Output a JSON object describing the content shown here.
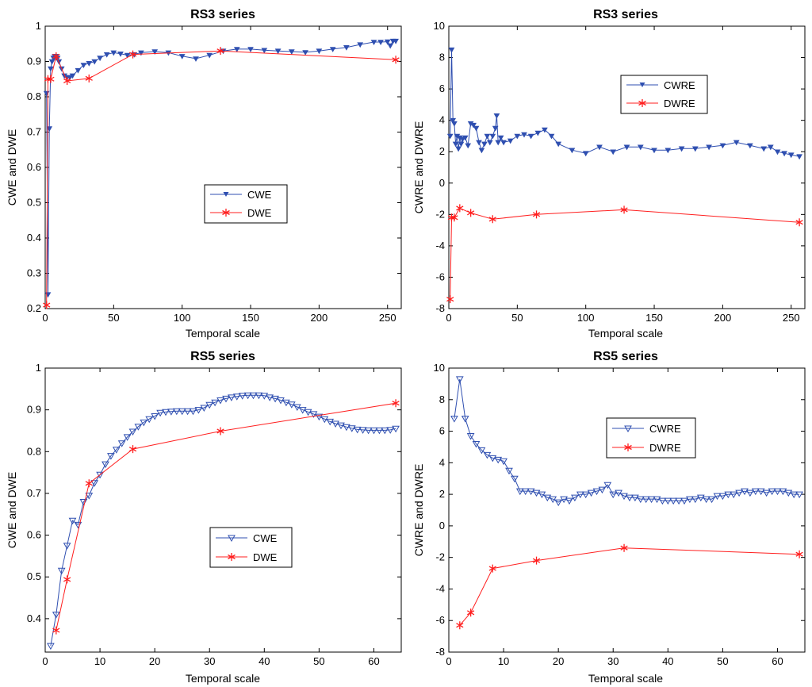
{
  "figure": {
    "colors": {
      "cwe": "#2f4fb0",
      "dwe": "#ff1f1f",
      "axes": "#000000",
      "background": "#ffffff"
    },
    "markers": {
      "cwe": "triangle-down-icon",
      "dwe": "asterisk-icon"
    }
  },
  "chart_data": [
    {
      "type": "line",
      "title": "RS3 series",
      "xlabel": "Temporal scale",
      "ylabel": "CWE and DWE",
      "xlim": [
        0,
        260
      ],
      "ylim": [
        0.2,
        1.0
      ],
      "xticks": [
        0,
        50,
        100,
        150,
        200,
        250
      ],
      "yticks": [
        0.2,
        0.3,
        0.4,
        0.5,
        0.6,
        0.7,
        0.8,
        0.9,
        1.0
      ],
      "xtick_labels": [
        "0",
        "50",
        "100",
        "150",
        "200",
        "250"
      ],
      "ytick_labels": [
        "0.2",
        "0.3",
        "0.4",
        "0.5",
        "0.6",
        "0.7",
        "0.8",
        "0.9",
        "1"
      ],
      "grid": false,
      "legend_position": "center-right",
      "series": [
        {
          "name": "CWE",
          "marker": "triangle-down",
          "x": [
            1,
            2,
            3,
            4,
            5,
            6,
            7,
            8,
            9,
            10,
            12,
            14,
            16,
            18,
            20,
            24,
            28,
            32,
            36,
            40,
            45,
            50,
            55,
            60,
            65,
            70,
            80,
            90,
            100,
            110,
            120,
            130,
            140,
            150,
            160,
            170,
            180,
            190,
            200,
            210,
            220,
            230,
            240,
            245,
            250,
            252,
            254,
            256
          ],
          "y": [
            0.81,
            0.24,
            0.71,
            0.88,
            0.9,
            0.91,
            0.915,
            0.915,
            0.91,
            0.9,
            0.88,
            0.86,
            0.855,
            0.855,
            0.86,
            0.875,
            0.89,
            0.895,
            0.9,
            0.91,
            0.92,
            0.925,
            0.922,
            0.918,
            0.92,
            0.925,
            0.928,
            0.925,
            0.915,
            0.908,
            0.918,
            0.93,
            0.935,
            0.935,
            0.932,
            0.93,
            0.928,
            0.926,
            0.93,
            0.935,
            0.94,
            0.948,
            0.955,
            0.955,
            0.956,
            0.945,
            0.958,
            0.958
          ]
        },
        {
          "name": "DWE",
          "marker": "asterisk",
          "x": [
            1,
            2,
            4,
            8,
            16,
            32,
            64,
            128,
            256
          ],
          "y": [
            0.21,
            0.85,
            0.85,
            0.915,
            0.845,
            0.852,
            0.92,
            0.93,
            0.905
          ]
        }
      ]
    },
    {
      "type": "line",
      "title": "RS3 series",
      "xlabel": "Temporal scale",
      "ylabel": "CWRE and DWRE",
      "xlim": [
        0,
        260
      ],
      "ylim": [
        -8,
        10
      ],
      "xticks": [
        0,
        50,
        100,
        150,
        200,
        250
      ],
      "yticks": [
        -8,
        -6,
        -4,
        -2,
        0,
        2,
        4,
        6,
        8,
        10
      ],
      "xtick_labels": [
        "0",
        "50",
        "100",
        "150",
        "200",
        "250"
      ],
      "ytick_labels": [
        "-8",
        "-6",
        "-4",
        "-2",
        "0",
        "2",
        "4",
        "6",
        "8",
        "10"
      ],
      "grid": false,
      "legend_position": "top-right",
      "series": [
        {
          "name": "CWRE",
          "marker": "triangle-down",
          "x": [
            1,
            2,
            3,
            4,
            5,
            6,
            7,
            8,
            9,
            10,
            12,
            14,
            16,
            18,
            20,
            22,
            24,
            26,
            28,
            30,
            32,
            34,
            35,
            36,
            38,
            40,
            45,
            50,
            55,
            60,
            65,
            70,
            75,
            80,
            90,
            100,
            110,
            120,
            130,
            140,
            150,
            160,
            170,
            180,
            190,
            200,
            210,
            220,
            230,
            235,
            240,
            245,
            250,
            256
          ],
          "y": [
            3.0,
            8.5,
            4.0,
            3.8,
            2.5,
            3.0,
            2.2,
            2.9,
            2.5,
            2.8,
            2.9,
            2.4,
            3.8,
            3.7,
            3.5,
            2.6,
            2.1,
            2.5,
            3.0,
            2.6,
            3.0,
            3.5,
            4.3,
            2.6,
            2.9,
            2.6,
            2.7,
            3.0,
            3.1,
            3.0,
            3.2,
            3.4,
            3.0,
            2.5,
            2.1,
            1.9,
            2.3,
            2.0,
            2.3,
            2.3,
            2.1,
            2.1,
            2.2,
            2.2,
            2.3,
            2.4,
            2.6,
            2.4,
            2.2,
            2.3,
            2.0,
            1.9,
            1.8,
            1.7
          ]
        },
        {
          "name": "DWRE",
          "marker": "asterisk",
          "x": [
            1,
            2,
            4,
            8,
            16,
            32,
            64,
            128,
            256
          ],
          "y": [
            -7.4,
            -2.2,
            -2.2,
            -1.6,
            -1.9,
            -2.3,
            -2.0,
            -1.7,
            -2.5
          ]
        }
      ]
    },
    {
      "type": "line",
      "title": "RS5 series",
      "xlabel": "Temporal scale",
      "ylabel": "CWE and DWE",
      "xlim": [
        0,
        65
      ],
      "ylim": [
        0.32,
        1.0
      ],
      "xticks": [
        0,
        10,
        20,
        30,
        40,
        50,
        60
      ],
      "yticks": [
        0.4,
        0.5,
        0.6,
        0.7,
        0.8,
        0.9,
        1.0
      ],
      "xtick_labels": [
        "0",
        "10",
        "20",
        "30",
        "40",
        "50",
        "60"
      ],
      "ytick_labels": [
        "0.4",
        "0.5",
        "0.6",
        "0.7",
        "0.8",
        "0.9",
        "1"
      ],
      "grid": false,
      "legend_position": "bottom-center",
      "series": [
        {
          "name": "CWE",
          "marker": "triangle-down",
          "x": [
            1,
            2,
            3,
            4,
            5,
            6,
            7,
            8,
            9,
            10,
            11,
            12,
            13,
            14,
            15,
            16,
            17,
            18,
            19,
            20,
            21,
            22,
            23,
            24,
            25,
            26,
            27,
            28,
            29,
            30,
            31,
            32,
            33,
            34,
            35,
            36,
            37,
            38,
            39,
            40,
            41,
            42,
            43,
            44,
            45,
            46,
            47,
            48,
            49,
            50,
            51,
            52,
            53,
            54,
            55,
            56,
            57,
            58,
            59,
            60,
            61,
            62,
            63,
            64
          ],
          "y": [
            0.335,
            0.41,
            0.515,
            0.575,
            0.635,
            0.625,
            0.68,
            0.695,
            0.725,
            0.745,
            0.77,
            0.79,
            0.805,
            0.82,
            0.835,
            0.848,
            0.86,
            0.87,
            0.878,
            0.885,
            0.893,
            0.895,
            0.896,
            0.897,
            0.897,
            0.897,
            0.897,
            0.9,
            0.905,
            0.912,
            0.918,
            0.923,
            0.927,
            0.93,
            0.932,
            0.934,
            0.935,
            0.935,
            0.935,
            0.934,
            0.93,
            0.927,
            0.923,
            0.918,
            0.913,
            0.907,
            0.9,
            0.895,
            0.89,
            0.884,
            0.878,
            0.872,
            0.867,
            0.863,
            0.859,
            0.856,
            0.853,
            0.852,
            0.851,
            0.851,
            0.851,
            0.851,
            0.852,
            0.855
          ]
        },
        {
          "name": "DWE",
          "marker": "asterisk",
          "x": [
            2,
            4,
            8,
            16,
            32,
            64
          ],
          "y": [
            0.372,
            0.494,
            0.724,
            0.806,
            0.849,
            0.916
          ]
        }
      ]
    },
    {
      "type": "line",
      "title": "RS5 series",
      "xlabel": "Temporal scale",
      "ylabel": "CWRE and DWRE",
      "xlim": [
        0,
        65
      ],
      "ylim": [
        -8,
        10
      ],
      "xticks": [
        0,
        10,
        20,
        30,
        40,
        50,
        60
      ],
      "yticks": [
        -8,
        -6,
        -4,
        -2,
        0,
        2,
        4,
        6,
        8,
        10
      ],
      "xtick_labels": [
        "0",
        "10",
        "20",
        "30",
        "40",
        "50",
        "60"
      ],
      "ytick_labels": [
        "-8",
        "-6",
        "-4",
        "-2",
        "0",
        "2",
        "4",
        "6",
        "8",
        "10"
      ],
      "grid": false,
      "legend_position": "top-center",
      "series": [
        {
          "name": "CWRE",
          "marker": "triangle-down",
          "x": [
            1,
            2,
            3,
            4,
            5,
            6,
            7,
            8,
            9,
            10,
            11,
            12,
            13,
            14,
            15,
            16,
            17,
            18,
            19,
            20,
            21,
            22,
            23,
            24,
            25,
            26,
            27,
            28,
            29,
            30,
            31,
            32,
            33,
            34,
            35,
            36,
            37,
            38,
            39,
            40,
            41,
            42,
            43,
            44,
            45,
            46,
            47,
            48,
            49,
            50,
            51,
            52,
            53,
            54,
            55,
            56,
            57,
            58,
            59,
            60,
            61,
            62,
            63,
            64
          ],
          "y": [
            6.8,
            9.3,
            6.8,
            5.7,
            5.2,
            4.8,
            4.5,
            4.3,
            4.2,
            4.1,
            3.5,
            3.0,
            2.2,
            2.2,
            2.2,
            2.1,
            2.0,
            1.8,
            1.7,
            1.5,
            1.7,
            1.6,
            1.8,
            2.0,
            2.0,
            2.1,
            2.2,
            2.3,
            2.6,
            2.0,
            2.1,
            1.9,
            1.8,
            1.8,
            1.7,
            1.7,
            1.7,
            1.7,
            1.6,
            1.6,
            1.6,
            1.6,
            1.6,
            1.7,
            1.7,
            1.8,
            1.7,
            1.7,
            1.9,
            1.9,
            2.0,
            2.0,
            2.1,
            2.2,
            2.1,
            2.2,
            2.2,
            2.1,
            2.2,
            2.2,
            2.2,
            2.1,
            2.0,
            2.0
          ]
        },
        {
          "name": "DWRE",
          "marker": "asterisk",
          "x": [
            2,
            4,
            8,
            16,
            32,
            64
          ],
          "y": [
            -6.3,
            -5.5,
            -2.7,
            -2.2,
            -1.4,
            -1.8
          ]
        }
      ]
    }
  ]
}
